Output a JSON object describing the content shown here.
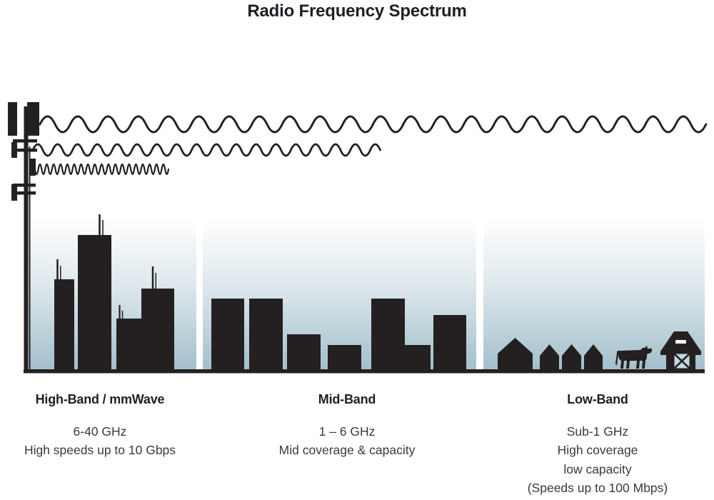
{
  "title": "Radio Frequency Spectrum",
  "colors": {
    "ink": "#242021",
    "heading_text": "#1c2026",
    "body_text": "#3a3a3a",
    "sky_top": "#ffffff",
    "sky_mid": "#dde7ec",
    "sky_bottom": "#a3bfcc",
    "barn_door": "#c4d8e0"
  },
  "bands": [
    {
      "heading": "High-Band / mmWave",
      "lines": [
        "6-40 GHz",
        "High speeds up to 10 Gbps"
      ]
    },
    {
      "heading": "Mid-Band",
      "lines": [
        "1 – 6 GHz",
        "Mid coverage & capacity"
      ]
    },
    {
      "heading": "Low-Band",
      "lines": [
        "Sub-1 GHz",
        "High coverage",
        "low capacity",
        "(Speeds up to 100 Mbps)"
      ]
    }
  ],
  "icons": [
    "cell-tower-icon",
    "radio-wave-long-icon",
    "radio-wave-medium-icon",
    "radio-wave-short-icon",
    "skyscraper-city-icon",
    "mid-rise-city-icon",
    "houses-icon",
    "cow-icon",
    "barn-icon"
  ]
}
